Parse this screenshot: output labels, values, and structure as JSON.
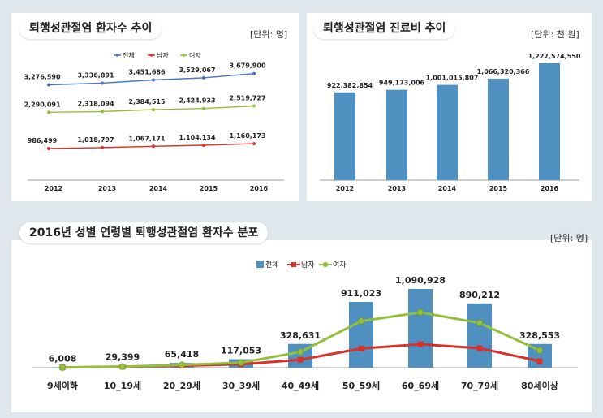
{
  "colors": {
    "total": "#4472c4",
    "male": "#d9302b",
    "female": "#92c03c",
    "bar": "#4f90c0",
    "bar_dark": "#2e6f9e"
  },
  "chart_data": [
    {
      "type": "line",
      "title": "퇴행성관절염 환자수 추이",
      "unit": "[단위: 명]",
      "categories": [
        "2012",
        "2013",
        "2014",
        "2015",
        "2016"
      ],
      "series": [
        {
          "name": "전체",
          "values": [
            3276590,
            3336891,
            3451686,
            3529067,
            3679900
          ],
          "labels": [
            "3,276,590",
            "3,336,891",
            "3,451,686",
            "3,529,067",
            "3,679,900"
          ]
        },
        {
          "name": "남자",
          "values": [
            986499,
            1018797,
            1067171,
            1104134,
            1160173
          ],
          "labels": [
            "986,499",
            "1,018,797",
            "1,067,171",
            "1,104,134",
            "1,160,173"
          ]
        },
        {
          "name": "여자",
          "values": [
            2290091,
            2318094,
            2384515,
            2424933,
            2519727
          ],
          "labels": [
            "2,290,091",
            "2,318,094",
            "2,384,515",
            "2,424,933",
            "2,519,727"
          ]
        }
      ]
    },
    {
      "type": "bar",
      "title": "퇴행성관절염 진료비 추이",
      "unit": "[단위: 천 원]",
      "categories": [
        "2012",
        "2013",
        "2014",
        "2015",
        "2016"
      ],
      "values": [
        922382854,
        949173006,
        1001015807,
        1066320366,
        1227574550
      ],
      "labels": [
        "922,382,854",
        "949,173,006",
        "1,001,015,807",
        "1,066,320,366",
        "1,227,574,550"
      ]
    },
    {
      "type": "bar",
      "title": "2016년 성별 연령별 퇴행성관절염 환자수 분포",
      "unit": "[단위: 명]",
      "categories": [
        "9세이하",
        "10_19세",
        "20_29세",
        "30_39세",
        "40_49세",
        "50_59세",
        "60_69세",
        "70_79세",
        "80세이상"
      ],
      "series": [
        {
          "name": "전체",
          "values": [
            6008,
            29399,
            65418,
            117053,
            328631,
            911023,
            1090928,
            890212,
            328553
          ],
          "labels": [
            "6,008",
            "29,399",
            "65,418",
            "117,053",
            "328,631",
            "911,023",
            "1,090,928",
            "890,212",
            "328,553"
          ]
        },
        {
          "name": "남자",
          "values": [
            3100,
            14500,
            27000,
            47000,
            110000,
            265000,
            325000,
            270000,
            90000
          ]
        },
        {
          "name": "여자",
          "values": [
            2900,
            14900,
            38400,
            70000,
            218631,
            646023,
            765928,
            620212,
            238553
          ]
        }
      ]
    }
  ]
}
